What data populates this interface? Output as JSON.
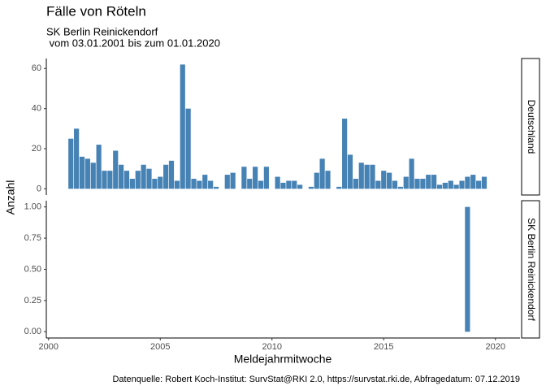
{
  "title": "Fälle von Röteln",
  "subtitle": [
    "SK Berlin Reinickendorf",
    " vom 03.01.2001 bis zum 01.01.2020"
  ],
  "x_label": "Meldejahrmitwoche",
  "y_label": "Anzahl",
  "caption": "Datenquelle: Robert Koch-Institut: SurvStat@RKI 2.0, https://survstat.rki.de, Abfragedatum: 07.12.2019",
  "chart_data": [
    {
      "type": "bar",
      "strip": "Deutschland",
      "color": "#4682b4",
      "x": [
        2001,
        2001.25,
        2001.5,
        2001.75,
        2002,
        2002.25,
        2002.5,
        2002.75,
        2003,
        2003.25,
        2003.5,
        2003.75,
        2004,
        2004.25,
        2004.5,
        2004.75,
        2005,
        2005.25,
        2005.5,
        2005.75,
        2006,
        2006.25,
        2006.5,
        2006.75,
        2007,
        2007.25,
        2007.5,
        2007.75,
        2008,
        2008.25,
        2008.5,
        2008.75,
        2009,
        2009.25,
        2009.5,
        2009.75,
        2010,
        2010.25,
        2010.5,
        2010.75,
        2011,
        2011.25,
        2011.5,
        2011.75,
        2012,
        2012.25,
        2012.5,
        2012.75,
        2013,
        2013.25,
        2013.5,
        2013.75,
        2014,
        2014.25,
        2014.5,
        2014.75,
        2015,
        2015.25,
        2015.5,
        2015.75,
        2016,
        2016.25,
        2016.5,
        2016.75,
        2017,
        2017.25,
        2017.5,
        2017.75,
        2018,
        2018.25,
        2018.5,
        2018.75,
        2019,
        2019.25,
        2019.5
      ],
      "values": [
        25,
        30,
        16,
        15,
        13,
        22,
        9,
        9,
        19,
        12,
        9,
        5,
        9,
        12,
        10,
        5,
        6,
        12,
        14,
        4,
        62,
        40,
        5,
        4,
        7,
        4,
        1,
        0,
        7,
        8,
        0,
        11,
        5,
        11,
        4,
        11,
        0,
        6,
        3,
        4,
        4,
        2,
        0,
        1,
        8,
        15,
        9,
        0,
        1,
        35,
        17,
        5,
        13,
        12,
        12,
        4,
        9,
        8,
        4,
        1,
        6,
        15,
        5,
        5,
        7,
        7,
        2,
        3,
        4,
        2,
        4,
        6,
        7,
        4,
        6
      ],
      "xlim": [
        1999.9,
        2021.1
      ],
      "ylim": [
        -3.1,
        65
      ],
      "yticks": [
        0,
        20,
        40,
        60
      ]
    },
    {
      "type": "bar",
      "strip": "SK Berlin Reinickendorf",
      "color": "#4682b4",
      "x": [
        2018.75
      ],
      "values": [
        1
      ],
      "xlim": [
        1999.9,
        2021.1
      ],
      "xticks": [
        2000,
        2005,
        2010,
        2015,
        2020
      ],
      "ylim": [
        -0.05,
        1.05
      ],
      "yticks": [
        {
          "value": 0,
          "label": "0.00"
        },
        {
          "value": 0.25,
          "label": "0.25"
        },
        {
          "value": 0.5,
          "label": "0.50"
        },
        {
          "value": 0.75,
          "label": "0.75"
        },
        {
          "value": 1,
          "label": "1.00"
        }
      ]
    }
  ]
}
